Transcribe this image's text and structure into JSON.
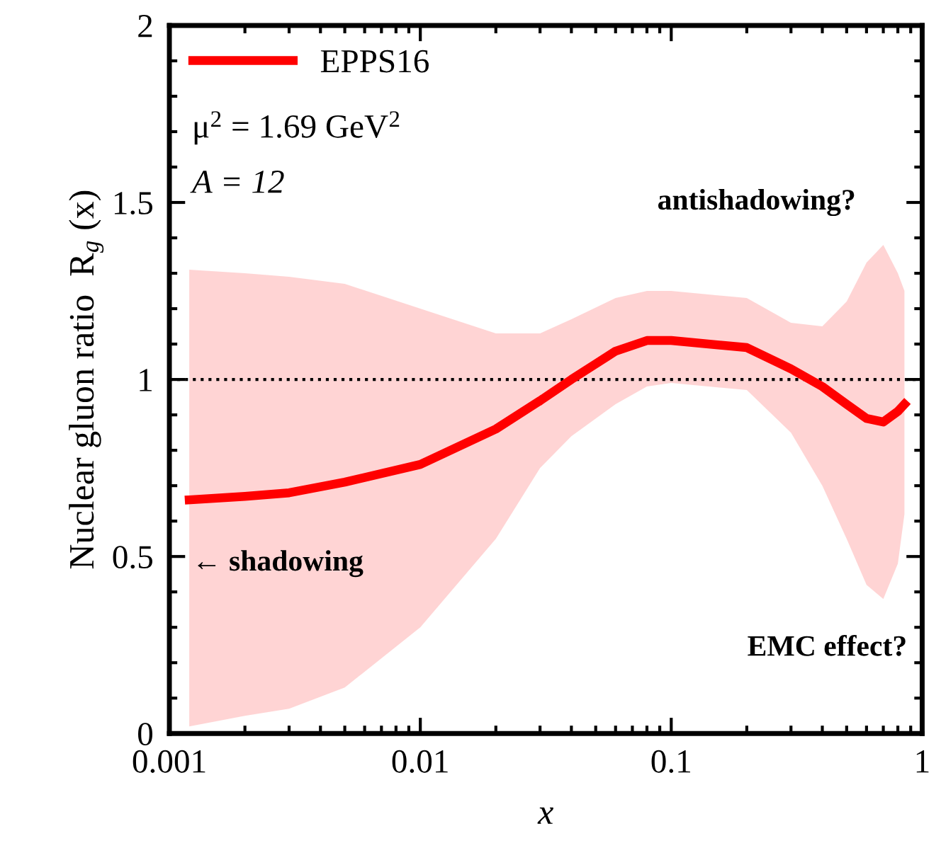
{
  "chart_data": {
    "type": "line",
    "xlabel": "x",
    "ylabel": "Nuclear gluon ratio  R$_{g}$ (x)",
    "log": "x",
    "xlim": [
      0.001,
      1
    ],
    "xticks": [
      0.001,
      0.01,
      0.1,
      1
    ],
    "ylim": [
      0,
      2
    ],
    "yticks": [
      0,
      0.5,
      1,
      1.5,
      2
    ],
    "grid": false,
    "legend": "top left",
    "series": [
      {
        "name": "EPPS16",
        "color": "#ff0000",
        "x": [
          0.0012,
          0.002,
          0.003,
          0.005,
          0.01,
          0.02,
          0.03,
          0.04,
          0.06,
          0.08,
          0.1,
          0.2,
          0.3,
          0.4,
          0.5,
          0.6,
          0.7,
          0.8,
          0.85
        ],
        "values": [
          0.66,
          0.67,
          0.68,
          0.71,
          0.76,
          0.86,
          0.94,
          1.0,
          1.08,
          1.11,
          1.11,
          1.09,
          1.03,
          0.98,
          0.93,
          0.89,
          0.88,
          0.91,
          0.93
        ],
        "upper": [
          1.31,
          1.3,
          1.29,
          1.27,
          1.2,
          1.13,
          1.13,
          1.17,
          1.23,
          1.25,
          1.25,
          1.23,
          1.16,
          1.15,
          1.22,
          1.33,
          1.38,
          1.3,
          1.25
        ],
        "lower": [
          0.02,
          0.05,
          0.07,
          0.13,
          0.3,
          0.55,
          0.75,
          0.84,
          0.93,
          0.98,
          0.99,
          0.97,
          0.85,
          0.7,
          0.55,
          0.42,
          0.38,
          0.48,
          0.62
        ]
      }
    ],
    "ref_lines": [
      {
        "axis": "y",
        "value": 1,
        "line_style": "dotted",
        "color": "#000000"
      }
    ],
    "annotations": [
      "μ$^{2}$ = 1.69 GeV$^{2}$",
      "A = 12",
      "antishadowing?",
      "← shadowing",
      "EMC effect?"
    ]
  }
}
